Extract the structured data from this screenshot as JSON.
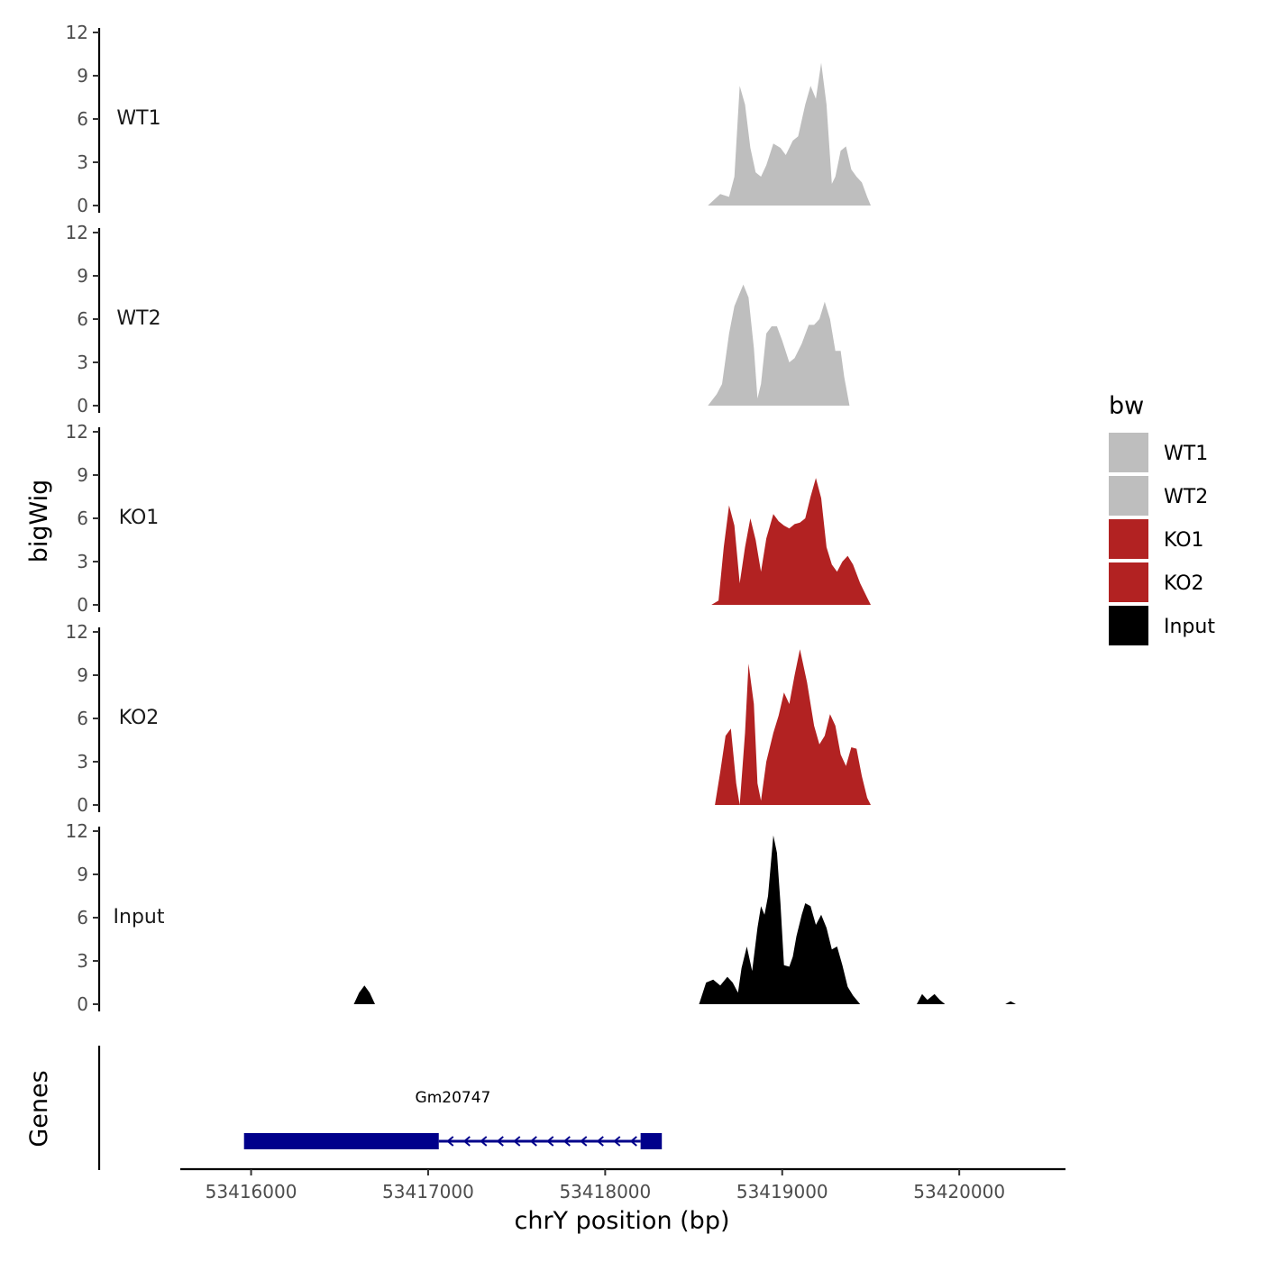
{
  "chart_data": {
    "type": "area",
    "ylabel": "bigWig",
    "xlabel": "chrY position (bp)",
    "genes_label": "Genes",
    "xlim": [
      53415600,
      53420600
    ],
    "x_ticks": [
      53416000,
      53417000,
      53418000,
      53419000,
      53420000
    ],
    "x_tick_labels": [
      "53416000",
      "53417000",
      "53418000",
      "53419000",
      "53420000"
    ],
    "ylim": [
      0,
      12
    ],
    "y_ticks": [
      0,
      3,
      6,
      9,
      12
    ],
    "y_tick_labels": [
      "0",
      "3",
      "6",
      "9",
      "12"
    ],
    "legend": {
      "title": "bw",
      "position": "right",
      "entries": [
        {
          "label": "WT1",
          "color": "#bebebe"
        },
        {
          "label": "WT2",
          "color": "#bebebe"
        },
        {
          "label": "KO1",
          "color": "#b22222"
        },
        {
          "label": "KO2",
          "color": "#b22222"
        },
        {
          "label": "Input",
          "color": "#000000"
        }
      ]
    },
    "series": [
      {
        "name": "WT1",
        "color": "#bebebe",
        "points": [
          [
            53418580,
            0
          ],
          [
            53418650,
            0.8
          ],
          [
            53418700,
            0.6
          ],
          [
            53418730,
            2
          ],
          [
            53418760,
            8.3
          ],
          [
            53418790,
            7
          ],
          [
            53418820,
            4
          ],
          [
            53418850,
            2.3
          ],
          [
            53418880,
            2
          ],
          [
            53418910,
            2.8
          ],
          [
            53418950,
            4.3
          ],
          [
            53418990,
            4
          ],
          [
            53419020,
            3.5
          ],
          [
            53419060,
            4.5
          ],
          [
            53419090,
            4.8
          ],
          [
            53419130,
            7
          ],
          [
            53419160,
            8.3
          ],
          [
            53419190,
            7.4
          ],
          [
            53419220,
            9.9
          ],
          [
            53419250,
            7
          ],
          [
            53419280,
            1.5
          ],
          [
            53419300,
            2
          ],
          [
            53419330,
            3.8
          ],
          [
            53419360,
            4.1
          ],
          [
            53419390,
            2.5
          ],
          [
            53419420,
            2
          ],
          [
            53419450,
            1.6
          ],
          [
            53419480,
            0.6
          ],
          [
            53419500,
            0
          ]
        ]
      },
      {
        "name": "WT2",
        "color": "#bebebe",
        "points": [
          [
            53418580,
            0
          ],
          [
            53418630,
            0.8
          ],
          [
            53418660,
            1.5
          ],
          [
            53418700,
            5
          ],
          [
            53418730,
            6.9
          ],
          [
            53418760,
            7.8
          ],
          [
            53418780,
            8.4
          ],
          [
            53418810,
            7.5
          ],
          [
            53418840,
            4
          ],
          [
            53418860,
            0.5
          ],
          [
            53418880,
            1.5
          ],
          [
            53418910,
            5
          ],
          [
            53418940,
            5.5
          ],
          [
            53418970,
            5.5
          ],
          [
            53419000,
            4.5
          ],
          [
            53419040,
            3
          ],
          [
            53419070,
            3.3
          ],
          [
            53419110,
            4.3
          ],
          [
            53419150,
            5.6
          ],
          [
            53419180,
            5.6
          ],
          [
            53419210,
            6
          ],
          [
            53419240,
            7.2
          ],
          [
            53419270,
            6
          ],
          [
            53419300,
            3.8
          ],
          [
            53419330,
            3.8
          ],
          [
            53419350,
            2
          ],
          [
            53419380,
            0
          ]
        ]
      },
      {
        "name": "KO1",
        "color": "#b22222",
        "points": [
          [
            53418600,
            0
          ],
          [
            53418640,
            0.3
          ],
          [
            53418670,
            4
          ],
          [
            53418700,
            6.9
          ],
          [
            53418730,
            5.5
          ],
          [
            53418760,
            1.5
          ],
          [
            53418790,
            4
          ],
          [
            53418820,
            6
          ],
          [
            53418850,
            4.5
          ],
          [
            53418880,
            2.3
          ],
          [
            53418910,
            4.6
          ],
          [
            53418950,
            6.3
          ],
          [
            53418980,
            5.8
          ],
          [
            53419010,
            5.5
          ],
          [
            53419040,
            5.3
          ],
          [
            53419070,
            5.6
          ],
          [
            53419100,
            5.7
          ],
          [
            53419130,
            6
          ],
          [
            53419160,
            7.5
          ],
          [
            53419190,
            8.8
          ],
          [
            53419220,
            7.4
          ],
          [
            53419250,
            4
          ],
          [
            53419280,
            2.8
          ],
          [
            53419310,
            2.3
          ],
          [
            53419340,
            3
          ],
          [
            53419370,
            3.4
          ],
          [
            53419400,
            2.8
          ],
          [
            53419440,
            1.5
          ],
          [
            53419480,
            0.5
          ],
          [
            53419500,
            0
          ]
        ]
      },
      {
        "name": "KO2",
        "color": "#b22222",
        "points": [
          [
            53418620,
            0
          ],
          [
            53418650,
            2.3
          ],
          [
            53418680,
            4.8
          ],
          [
            53418710,
            5.3
          ],
          [
            53418740,
            1.5
          ],
          [
            53418760,
            0
          ],
          [
            53418790,
            5
          ],
          [
            53418810,
            9.8
          ],
          [
            53418840,
            7
          ],
          [
            53418860,
            1.5
          ],
          [
            53418880,
            0.3
          ],
          [
            53418910,
            3
          ],
          [
            53418950,
            5
          ],
          [
            53418980,
            6.2
          ],
          [
            53419010,
            7.8
          ],
          [
            53419040,
            7
          ],
          [
            53419070,
            9
          ],
          [
            53419100,
            10.8
          ],
          [
            53419140,
            8.5
          ],
          [
            53419180,
            5.5
          ],
          [
            53419210,
            4.2
          ],
          [
            53419240,
            4.8
          ],
          [
            53419270,
            6.3
          ],
          [
            53419300,
            5.5
          ],
          [
            53419330,
            3.5
          ],
          [
            53419360,
            2.7
          ],
          [
            53419390,
            4
          ],
          [
            53419420,
            3.9
          ],
          [
            53419450,
            2
          ],
          [
            53419480,
            0.5
          ],
          [
            53419500,
            0
          ]
        ]
      },
      {
        "name": "Input",
        "color": "#000000",
        "points": [
          [
            53418530,
            0
          ],
          [
            53418570,
            1.5
          ],
          [
            53418610,
            1.7
          ],
          [
            53418650,
            1.3
          ],
          [
            53418690,
            1.9
          ],
          [
            53418720,
            1.5
          ],
          [
            53418750,
            0.8
          ],
          [
            53418770,
            2.5
          ],
          [
            53418800,
            4
          ],
          [
            53418830,
            2.3
          ],
          [
            53418860,
            5.3
          ],
          [
            53418880,
            6.8
          ],
          [
            53418900,
            6.2
          ],
          [
            53418920,
            7.5
          ],
          [
            53418950,
            11.7
          ],
          [
            53418970,
            10.5
          ],
          [
            53418990,
            7
          ],
          [
            53419010,
            2.7
          ],
          [
            53419040,
            2.6
          ],
          [
            53419060,
            3.3
          ],
          [
            53419080,
            4.7
          ],
          [
            53419110,
            6.2
          ],
          [
            53419130,
            7
          ],
          [
            53419160,
            6.8
          ],
          [
            53419190,
            5.5
          ],
          [
            53419220,
            6.2
          ],
          [
            53419250,
            5.3
          ],
          [
            53419280,
            3.8
          ],
          [
            53419310,
            4
          ],
          [
            53419340,
            2.7
          ],
          [
            53419370,
            1.2
          ],
          [
            53419400,
            0.6
          ],
          [
            53419440,
            0
          ],
          [
            53419760,
            0
          ],
          [
            53419790,
            0.7
          ],
          [
            53419820,
            0.3
          ],
          [
            53419860,
            0.7
          ],
          [
            53419890,
            0.3
          ],
          [
            53419920,
            0
          ],
          [
            53420260,
            0
          ],
          [
            53420290,
            0.2
          ],
          [
            53420320,
            0
          ]
        ],
        "extra_peaks": [
          [
            [
              53416580,
              0
            ],
            [
              53416610,
              0.8
            ],
            [
              53416640,
              1.3
            ],
            [
              53416670,
              0.8
            ],
            [
              53416700,
              0
            ]
          ]
        ]
      }
    ],
    "gene": {
      "name": "Gm20747",
      "strand": "-",
      "color": "#00008b",
      "exons": [
        [
          53415960,
          53417060
        ],
        [
          53418200,
          53418320
        ]
      ],
      "intron_start": 53417060,
      "intron_end": 53418200
    }
  }
}
